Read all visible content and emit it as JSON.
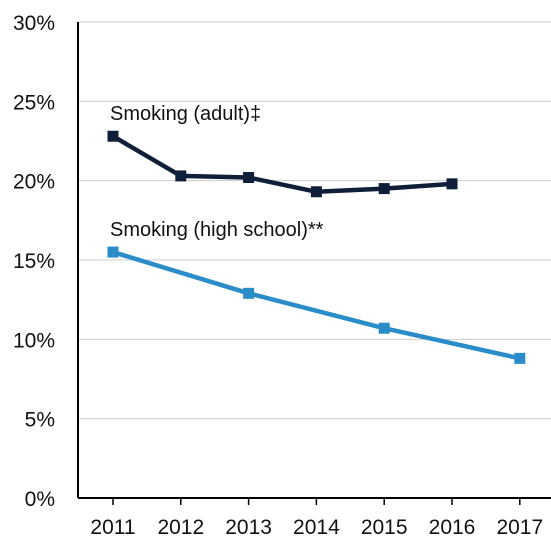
{
  "chart_data": {
    "type": "line",
    "x": [
      "2011",
      "2012",
      "2013",
      "2014",
      "2015",
      "2016",
      "2017"
    ],
    "ylim": [
      0,
      30
    ],
    "yticks": [
      "0%",
      "5%",
      "10%",
      "15%",
      "20%",
      "25%",
      "30%"
    ],
    "grid": true,
    "series": [
      {
        "name": "Smoking (adult)‡",
        "color": "#0f1f3a",
        "values": [
          22.8,
          20.3,
          20.2,
          19.3,
          19.5,
          19.8,
          null
        ]
      },
      {
        "name": "Smoking (high school)**",
        "color": "#2a8cc8",
        "values": [
          15.5,
          null,
          12.9,
          null,
          10.7,
          null,
          8.8
        ]
      }
    ]
  }
}
